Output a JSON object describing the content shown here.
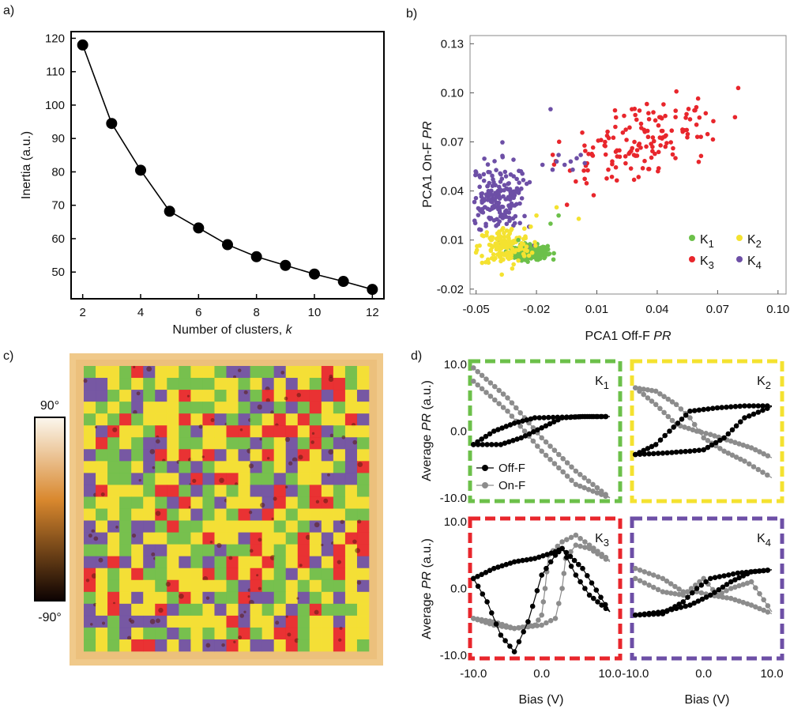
{
  "colors": {
    "green": "#6cc04a",
    "yellow": "#f4e230",
    "red": "#e8262c",
    "purple": "#6d4fa6",
    "off_f": "#000000",
    "on_f": "#8c8c8c",
    "colorbar_top": "#fbf7ee",
    "colorbar_mid": "#d9882e",
    "colorbar_bottom": "#0c0202"
  },
  "panels": {
    "a": "a)",
    "b": "b)",
    "c": "c)",
    "d": "d)"
  },
  "chart_data": [
    {
      "id": "a",
      "type": "line",
      "x": [
        2,
        3,
        4,
        5,
        6,
        7,
        8,
        9,
        10,
        11,
        12
      ],
      "y": [
        118,
        94.5,
        80.5,
        68.2,
        63.2,
        58.2,
        54.6,
        52.0,
        49.4,
        47.2,
        44.8
      ],
      "xlabel": "Number of clusters, ",
      "xlabel_italic": "k",
      "ylabel": "Inertia (a.u.)",
      "xlim": [
        1.6,
        12.4
      ],
      "ylim": [
        42,
        122
      ],
      "xticks": [
        2,
        4,
        6,
        8,
        10,
        12
      ],
      "yticks": [
        50,
        60,
        70,
        80,
        90,
        100,
        110,
        120
      ]
    },
    {
      "id": "b",
      "type": "scatter",
      "xlabel": "PCA1 Off-F ",
      "xlabel_italic": "PR",
      "ylabel": "PCA1 On-F ",
      "ylabel_italic": "PR",
      "xlim": [
        -0.053,
        0.104
      ],
      "ylim": [
        -0.023,
        0.135
      ],
      "xticks": [
        -0.05,
        -0.02,
        0.01,
        0.04,
        0.07,
        0.1
      ],
      "xticklabels": [
        "-0.05",
        "-0.02",
        "0.01",
        "0.04",
        "0.07",
        "0.10"
      ],
      "yticks": [
        -0.02,
        0.01,
        0.04,
        0.07,
        0.1,
        0.13
      ],
      "yticklabels": [
        "-0.02",
        "0.01",
        "0.04",
        "0.07",
        "0.10",
        "0.13"
      ],
      "legend": [
        {
          "label": "K",
          "sub": "1",
          "color": "green"
        },
        {
          "label": "K",
          "sub": "2",
          "color": "yellow"
        },
        {
          "label": "K",
          "sub": "3",
          "color": "red"
        },
        {
          "label": "K",
          "sub": "4",
          "color": "purple"
        }
      ],
      "legend_position": "bottom-right",
      "clusters": [
        {
          "name": "K1",
          "color": "green",
          "center": [
            -0.023,
            0.0025
          ],
          "spread": [
            0.0042,
            0.0022
          ],
          "n": 260
        },
        {
          "name": "K2",
          "color": "yellow",
          "center": [
            -0.036,
            0.006
          ],
          "spread": [
            0.0065,
            0.006
          ],
          "n": 150
        },
        {
          "name": "K3",
          "color": "red",
          "center": [
            0.033,
            0.071
          ],
          "spread": [
            0.02,
            0.013
          ],
          "n": 150
        },
        {
          "name": "K4",
          "color": "purple",
          "center": [
            -0.039,
            0.035
          ],
          "spread": [
            0.008,
            0.011
          ],
          "n": 200
        }
      ],
      "extra_points": [
        {
          "color": "purple",
          "pts": [
            [
              -0.017,
              0.056
            ],
            [
              -0.01,
              0.058
            ],
            [
              -0.006,
              0.056
            ],
            [
              -0.003,
              0.058
            ],
            [
              -0.009,
              0.062
            ],
            [
              -0.013,
              0.09
            ],
            [
              0.0,
              0.06
            ],
            [
              0.004,
              0.057
            ],
            [
              -0.012,
              0.053
            ],
            [
              -0.002,
              0.053
            ],
            [
              0.002,
              0.062
            ]
          ]
        },
        {
          "color": "green",
          "pts": [
            [
              -0.013,
              0.02
            ],
            [
              -0.029,
              0.01
            ],
            [
              -0.009,
              0.025
            ]
          ]
        },
        {
          "color": "yellow",
          "pts": [
            [
              -0.01,
              0.03
            ],
            [
              0.001,
              0.023
            ],
            [
              -0.02,
              0.025
            ],
            [
              -0.026,
              0.017
            ]
          ]
        }
      ]
    },
    {
      "id": "c",
      "type": "heatmap",
      "colorbar_labels": [
        "90°",
        "-90°"
      ],
      "grid_rows": 24,
      "grid_cols": 24,
      "categories": [
        "green",
        "yellow",
        "red",
        "purple"
      ],
      "fractions": [
        0.28,
        0.4,
        0.16,
        0.16
      ]
    },
    {
      "id": "d",
      "type": "line",
      "ylabel": "Average ",
      "ylabel_italic": "PR",
      "ylabel_unit": " (a.u.)",
      "xlabel": "Bias (V)",
      "xlim": [
        -10.5,
        11.5
      ],
      "ylim": [
        -10.5,
        10.5
      ],
      "xticklabels": [
        "-10.0",
        "0.0",
        "10.0"
      ],
      "yticklabels": [
        "10.0",
        "0.0",
        "-10.0"
      ],
      "legend": [
        {
          "label": "Off-F",
          "color": "off_f"
        },
        {
          "label": "On-F",
          "color": "on_f"
        }
      ],
      "subplots": [
        {
          "label": "K",
          "sub": "1",
          "border": "green",
          "off_lower": [
            [
              -10,
              -2
            ],
            [
              -6,
              -2
            ],
            [
              -3,
              -1
            ],
            [
              0,
              0.5
            ],
            [
              3,
              2
            ],
            [
              6,
              2.2
            ],
            [
              10,
              2.2
            ]
          ],
          "off_upper": [
            [
              -10,
              -2
            ],
            [
              -7,
              0
            ],
            [
              -4,
              1.2
            ],
            [
              -1,
              2
            ],
            [
              3,
              2.1
            ],
            [
              7,
              2.2
            ],
            [
              10,
              2.2
            ]
          ],
          "on_a": [
            [
              -10,
              9.5
            ],
            [
              -5,
              5
            ],
            [
              0,
              -1
            ],
            [
              5,
              -6
            ],
            [
              10,
              -10
            ]
          ],
          "on_b": [
            [
              -10,
              7.5
            ],
            [
              -5,
              3
            ],
            [
              0,
              -3
            ],
            [
              5,
              -8
            ],
            [
              10,
              -10
            ]
          ]
        },
        {
          "label": "K",
          "sub": "2",
          "border": "yellow",
          "off_lower": [
            [
              -10,
              -3.5
            ],
            [
              -6,
              -3.3
            ],
            [
              -2,
              -3
            ],
            [
              0,
              -2.8
            ],
            [
              3,
              -1
            ],
            [
              6,
              2
            ],
            [
              10,
              3.7
            ]
          ],
          "off_upper": [
            [
              -10,
              -3.5
            ],
            [
              -7,
              -2
            ],
            [
              -5,
              0
            ],
            [
              -2,
              3
            ],
            [
              2,
              3.5
            ],
            [
              6,
              3.8
            ],
            [
              10,
              3.8
            ]
          ],
          "on_a": [
            [
              -10,
              6.5
            ],
            [
              -7,
              6
            ],
            [
              -4,
              4
            ],
            [
              -2,
              2
            ],
            [
              0,
              -1
            ],
            [
              3,
              -3
            ],
            [
              6,
              -4.5
            ],
            [
              10,
              -7
            ]
          ],
          "on_b": [
            [
              -10,
              6.5
            ],
            [
              -7,
              4
            ],
            [
              -4,
              1
            ],
            [
              -1,
              0
            ],
            [
              1,
              -0.5
            ],
            [
              4,
              -1.5
            ],
            [
              7,
              -2.5
            ],
            [
              10,
              -4
            ]
          ]
        },
        {
          "label": "K",
          "sub": "3",
          "border": "red",
          "off_lower": [
            [
              -10,
              1.5
            ],
            [
              -8,
              -2
            ],
            [
              -6,
              -7
            ],
            [
              -4,
              -9.5
            ],
            [
              -2,
              -5
            ],
            [
              0,
              2
            ],
            [
              2,
              5
            ],
            [
              3,
              6
            ],
            [
              5,
              2
            ],
            [
              7,
              -1
            ],
            [
              10,
              -3.5
            ]
          ],
          "off_upper": [
            [
              -10,
              1.5
            ],
            [
              -7,
              3
            ],
            [
              -4,
              4
            ],
            [
              -1,
              4.5
            ],
            [
              2,
              5.5
            ],
            [
              3,
              6
            ],
            [
              6,
              3
            ],
            [
              10,
              -3.5
            ]
          ],
          "on_a": [
            [
              -10,
              -4.5
            ],
            [
              -7,
              -5
            ],
            [
              -4,
              -6
            ],
            [
              -1,
              -5.5
            ],
            [
              0,
              -4
            ],
            [
              0.5,
              0
            ],
            [
              1,
              5
            ],
            [
              3,
              7
            ],
            [
              5,
              8
            ],
            [
              7,
              6.5
            ],
            [
              10,
              4.2
            ]
          ],
          "on_b": [
            [
              -10,
              -4.5
            ],
            [
              -7,
              -5.5
            ],
            [
              -4,
              -6
            ],
            [
              0,
              -5.5
            ],
            [
              2,
              -4.5
            ],
            [
              3,
              0
            ],
            [
              3.5,
              4.5
            ],
            [
              5,
              6.5
            ],
            [
              7,
              6
            ],
            [
              10,
              4
            ]
          ]
        },
        {
          "label": "K",
          "sub": "4",
          "border": "purple",
          "off_lower": [
            [
              -10,
              -4
            ],
            [
              -6,
              -3.8
            ],
            [
              -3,
              -2
            ],
            [
              -1,
              0
            ],
            [
              1,
              1.5
            ],
            [
              5,
              2.3
            ],
            [
              10,
              2.8
            ]
          ],
          "off_upper": [
            [
              -10,
              -4
            ],
            [
              -6,
              -3.5
            ],
            [
              -2,
              -2.5
            ],
            [
              1,
              -1
            ],
            [
              4,
              1
            ],
            [
              7,
              2.5
            ],
            [
              10,
              2.8
            ]
          ],
          "on_a": [
            [
              -10,
              3
            ],
            [
              -6,
              1.5
            ],
            [
              -3,
              -0.5
            ],
            [
              -1,
              -0.5
            ],
            [
              1,
              -1
            ],
            [
              4,
              -1.5
            ],
            [
              7,
              -2.5
            ],
            [
              10,
              -3.8
            ]
          ],
          "on_b": [
            [
              -10,
              1.5
            ],
            [
              -6,
              -0.5
            ],
            [
              -3,
              -1
            ],
            [
              0,
              1.5
            ],
            [
              2,
              -1
            ],
            [
              4,
              0
            ],
            [
              7,
              1
            ],
            [
              10,
              -3.5
            ]
          ]
        }
      ]
    }
  ]
}
